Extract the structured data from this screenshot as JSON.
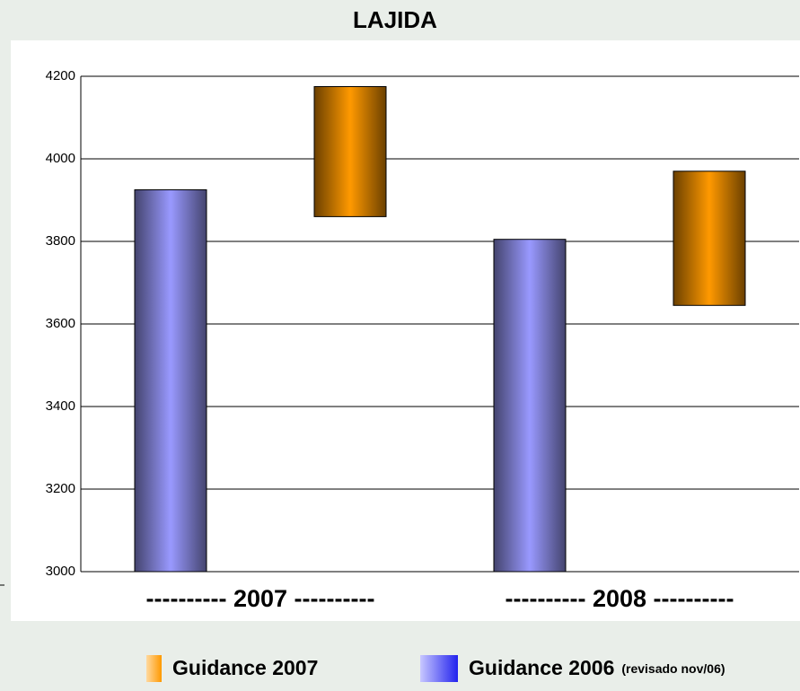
{
  "chart_data": {
    "type": "bar",
    "title": "LAJIDA",
    "categories": [
      "---------- 2007 ----------",
      "---------- 2008 ----------"
    ],
    "series": [
      {
        "name": "Guidance 2007",
        "color": "#ff9900",
        "low": [
          3860,
          3645
        ],
        "high": [
          4175,
          3970
        ]
      },
      {
        "name": "Guidance 2006",
        "legend_note": "(revisado nov/06)",
        "color": "#9999ff",
        "values": [
          3925,
          3805
        ]
      }
    ],
    "ylim": [
      3000,
      4200
    ],
    "yticks": [
      3000,
      3200,
      3400,
      3600,
      3800,
      4000,
      4200
    ],
    "grid": true
  }
}
